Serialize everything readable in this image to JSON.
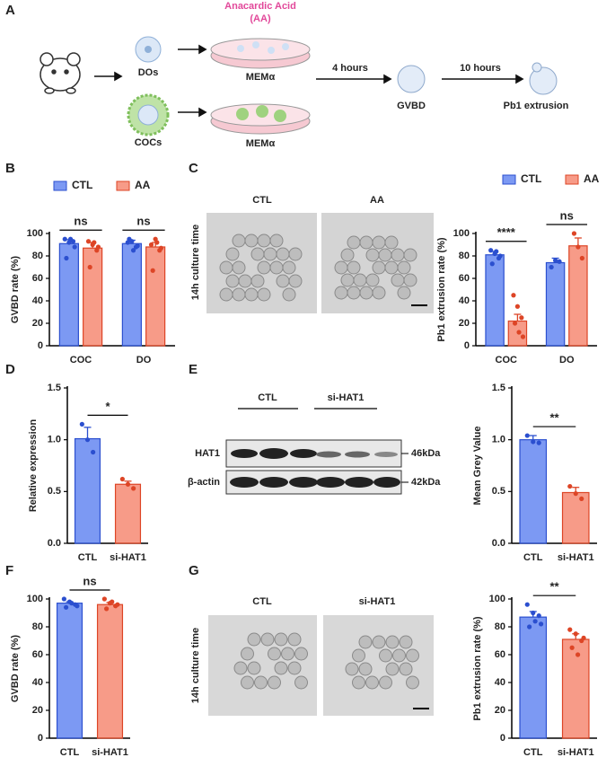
{
  "panel_letters": [
    "A",
    "B",
    "C",
    "D",
    "E",
    "F",
    "G"
  ],
  "panel_a": {
    "treatment_line1": "Anacardic Acid",
    "treatment_line2": "(AA)",
    "dos": "DOs",
    "cocs": "COCs",
    "medium": [
      "MEMα",
      "MEMα"
    ],
    "step1": "4 hours",
    "gvbd": "GVBD",
    "step2": "10 hours",
    "pb1": "Pb1 extrusion"
  },
  "panel_c": {
    "image_labels": [
      "CTL",
      "AA"
    ],
    "side_label": "14h culture time"
  },
  "panel_e": {
    "groups": [
      "CTL",
      "si-HAT1"
    ],
    "bands": [
      "HAT1",
      "β-actin"
    ],
    "sizes": [
      "46kDa",
      "42kDa"
    ]
  },
  "panel_g": {
    "image_labels": [
      "CTL",
      "si-HAT1"
    ],
    "side_label": "14h culture time"
  },
  "chart_data": [
    {
      "type": "bar",
      "ylabel": "GVBD rate (%)",
      "categories": [
        "COC",
        "DO"
      ],
      "series": [
        {
          "name": "CTL",
          "color": "#5b7ff0",
          "values": [
            91,
            91
          ],
          "errors": [
            3.5,
            3
          ],
          "points": [
            [
              95,
              92,
              93,
              78,
              95,
              88
            ],
            [
              92,
              93,
              88,
              95,
              85,
              89
            ]
          ]
        },
        {
          "name": "AA",
          "color": "#f5826a",
          "values": [
            87,
            88
          ],
          "errors": [
            5,
            4
          ],
          "points": [
            [
              93,
              90,
              85,
              70,
              92,
              88
            ],
            [
              90,
              95,
              85,
              67,
              92,
              87
            ]
          ]
        }
      ],
      "annotations": [
        "ns",
        "ns"
      ],
      "ylim": [
        0,
        100
      ],
      "yticks": [
        0,
        20,
        40,
        60,
        80,
        100
      ]
    },
    {
      "type": "bar",
      "ylabel": "Pb1 extrusion rate (%)",
      "categories": [
        "COC",
        "DO"
      ],
      "series": [
        {
          "name": "CTL",
          "color": "#5b7ff0",
          "values": [
            81,
            74
          ],
          "errors": [
            3,
            4
          ],
          "points": [
            [
              85,
              82,
              78,
              73,
              84,
              80
            ],
            [
              70,
              76,
              75
            ]
          ]
        },
        {
          "name": "AA",
          "color": "#f5826a",
          "values": [
            22,
            89
          ],
          "errors": [
            6,
            7
          ],
          "points": [
            [
              45,
              35,
              25,
              20,
              12,
              8
            ],
            [
              100,
              88,
              78
            ]
          ]
        }
      ],
      "annotations": [
        "****",
        "ns"
      ],
      "ylim": [
        0,
        100
      ],
      "yticks": [
        0,
        20,
        40,
        60,
        80,
        100
      ]
    },
    {
      "type": "bar",
      "ylabel": "Relative expression",
      "categories": [
        "CTL",
        "si-HAT1"
      ],
      "colors": [
        "#5b7ff0",
        "#f5826a"
      ],
      "values": [
        1.01,
        0.57
      ],
      "errors": [
        0.11,
        0.03
      ],
      "points": [
        [
          1.15,
          1.0,
          0.88
        ],
        [
          0.62,
          0.57,
          0.53
        ]
      ],
      "annotations": [
        "*"
      ],
      "ylim": [
        0,
        1.5
      ],
      "yticks": [
        {
          "value": 0,
          "label": "0.0"
        },
        0.5,
        {
          "value": 1,
          "label": "1.0"
        },
        1.5
      ]
    },
    {
      "type": "bar",
      "ylabel": "Mean Grey Value",
      "categories": [
        "CTL",
        "si-HAT1"
      ],
      "colors": [
        "#5b7ff0",
        "#f5826a"
      ],
      "values": [
        1.0,
        0.49
      ],
      "errors": [
        0.04,
        0.05
      ],
      "points": [
        [
          1.04,
          0.98,
          0.97
        ],
        [
          0.55,
          0.48,
          0.43
        ]
      ],
      "annotations": [
        "**"
      ],
      "ylim": [
        0,
        1.5
      ],
      "yticks": [
        {
          "value": 0,
          "label": "0.0"
        },
        0.5,
        {
          "value": 1,
          "label": "1.0"
        },
        1.5
      ]
    },
    {
      "type": "bar",
      "ylabel": "GVBD rate (%)",
      "categories": [
        "CTL",
        "si-HAT1"
      ],
      "colors": [
        "#5b7ff0",
        "#f5826a"
      ],
      "values": [
        97,
        96
      ],
      "errors": [
        1,
        1.5
      ],
      "points": [
        [
          100,
          98,
          96,
          94,
          97,
          95
        ],
        [
          100,
          97,
          95,
          93,
          98,
          96
        ]
      ],
      "annotations": [
        "ns"
      ],
      "ylim": [
        0,
        100
      ],
      "yticks": [
        0,
        20,
        40,
        60,
        80,
        100
      ]
    },
    {
      "type": "bar",
      "ylabel": "Pb1 extrusion rate (%)",
      "categories": [
        "CTL",
        "si-HAT1"
      ],
      "colors": [
        "#5b7ff0",
        "#f5826a"
      ],
      "values": [
        87,
        71
      ],
      "errors": [
        4,
        4
      ],
      "points": [
        [
          96,
          90,
          88,
          80,
          84,
          82
        ],
        [
          78,
          75,
          70,
          65,
          60,
          72
        ]
      ],
      "annotations": [
        "**"
      ],
      "ylim": [
        0,
        100
      ],
      "yticks": [
        0,
        20,
        40,
        60,
        80,
        100
      ]
    }
  ]
}
